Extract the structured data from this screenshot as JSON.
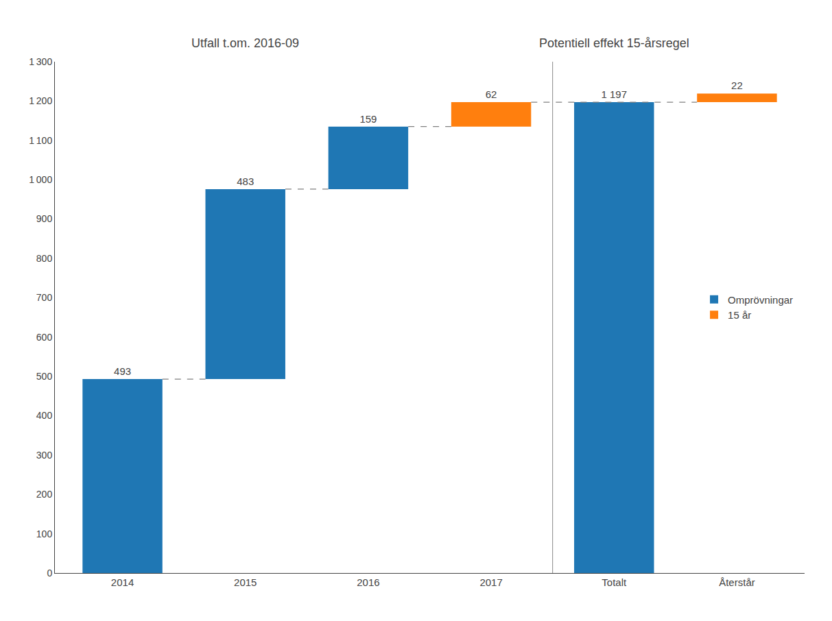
{
  "chart_data": {
    "type": "waterfall",
    "annotations": [
      "Utfall t.om. 2016-09",
      "Potentiell effekt 15-årsregel"
    ],
    "categories": [
      "2014",
      "2015",
      "2016",
      "2017",
      "Totalt",
      "Återstår"
    ],
    "series": [
      {
        "name": "Omprövningar",
        "values": [
          493,
          483,
          159,
          null,
          1197,
          null
        ],
        "value_labels": [
          "493",
          "483",
          "159",
          null,
          "1 197",
          null
        ]
      },
      {
        "name": "15 år",
        "values": [
          null,
          null,
          null,
          62,
          null,
          22
        ]
      }
    ],
    "ylim": [
      0,
      1300
    ],
    "yticks": [
      0,
      100,
      200,
      300,
      400,
      500,
      600,
      700,
      800,
      900,
      {
        "value": 1000,
        "label": "1 000"
      },
      {
        "value": 1100,
        "label": "1 100"
      },
      {
        "value": 1200,
        "label": "1 200"
      },
      {
        "value": 1300,
        "label": "1 300"
      }
    ],
    "grid": false,
    "legend": "right",
    "data_labels": true
  }
}
